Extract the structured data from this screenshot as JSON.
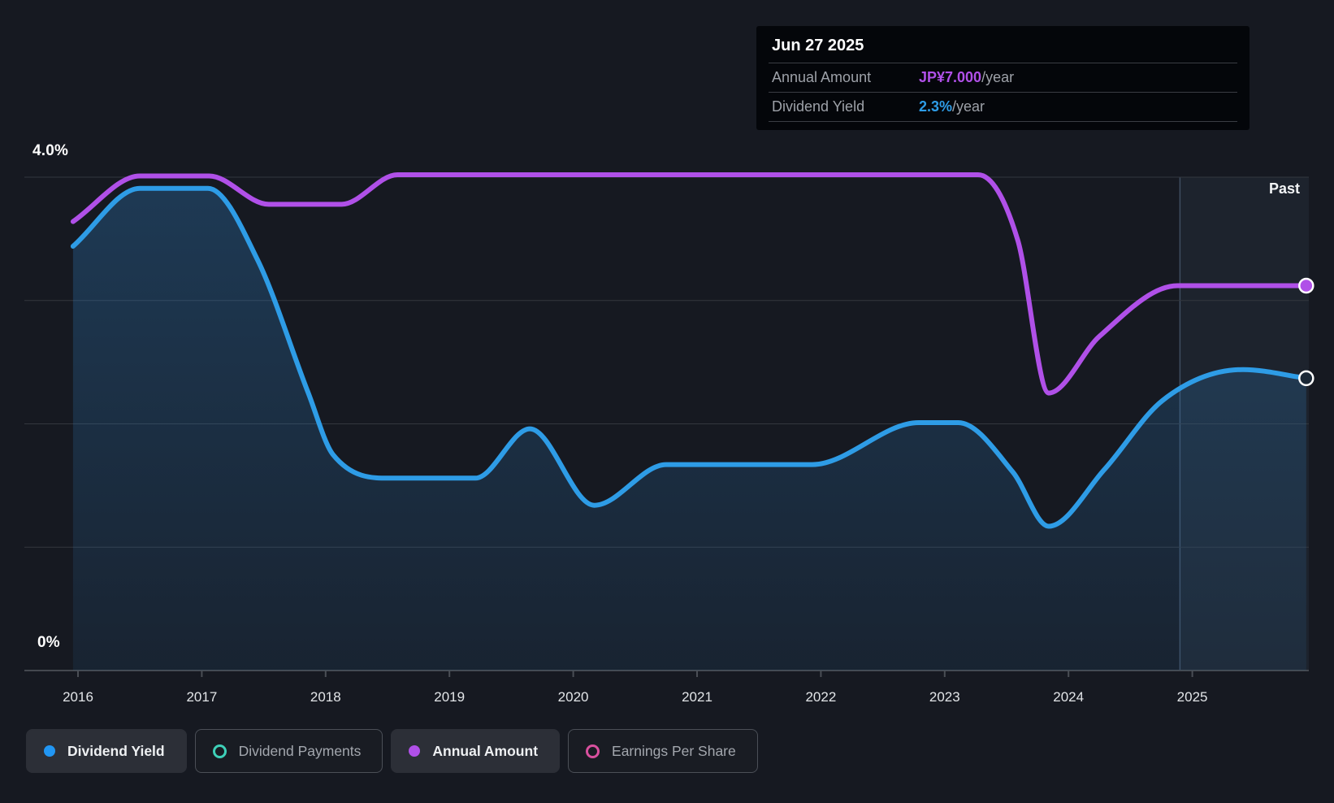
{
  "tooltip": {
    "date": "Jun 27 2025",
    "rows": [
      {
        "label": "Annual Amount",
        "value": "JP¥7.000",
        "suffix": "/year",
        "color": "#b050e8"
      },
      {
        "label": "Dividend Yield",
        "value": "2.3%",
        "suffix": "/year",
        "color": "#2e9ce6"
      }
    ]
  },
  "legend": [
    {
      "label": "Dividend Yield",
      "marker": "filled",
      "color": "#2196f3",
      "selected": true
    },
    {
      "label": "Dividend Payments",
      "marker": "outline",
      "color": "#3ed0b8",
      "selected": false
    },
    {
      "label": "Annual Amount",
      "marker": "filled",
      "color": "#b050e8",
      "selected": true
    },
    {
      "label": "Earnings Per Share",
      "marker": "outline",
      "color": "#d8509e",
      "selected": false
    }
  ],
  "colors": {
    "background": "#161921",
    "dividend_yield": "#2e9ce6",
    "annual_amount": "#b050e8",
    "grid": "#33373e",
    "axis": "#44484f",
    "tick": "#4a4e55",
    "area_top": "rgba(46,126,192,0.32)",
    "area_bottom": "rgba(46,126,192,0.10)",
    "past_fill": "rgba(130,165,215,0.07)",
    "past_line": "rgba(150,185,225,0.30)",
    "marker_hollow_fill": "#1b2836"
  },
  "chart_data": {
    "type": "line",
    "x_axis": {
      "labels": [
        "2016",
        "2017",
        "2018",
        "2019",
        "2020",
        "2021",
        "2022",
        "2023",
        "2024",
        "2025"
      ]
    },
    "y_axis": {
      "top_label": "4.0%",
      "bottom_label": "0%",
      "range_percent": [
        0,
        4
      ],
      "gridlines_percent": [
        4,
        3,
        2,
        1,
        0
      ]
    },
    "past_label": "Past",
    "past_divider_year": 2024.9,
    "series": [
      {
        "name": "Annual Amount",
        "color": "#b050e8",
        "current_value": "JP¥7.000/year",
        "end_marker": "filled",
        "area": false,
        "points": [
          [
            2015.96,
            3.64
          ],
          [
            2016.5,
            4.01
          ],
          [
            2017.06,
            4.01
          ],
          [
            2017.54,
            3.78
          ],
          [
            2018.13,
            3.78
          ],
          [
            2018.58,
            4.02
          ],
          [
            2023.27,
            4.02
          ],
          [
            2023.59,
            3.49
          ],
          [
            2023.84,
            2.25
          ],
          [
            2024.25,
            2.71
          ],
          [
            2024.88,
            3.12
          ],
          [
            2025.92,
            3.12
          ]
        ]
      },
      {
        "name": "Dividend Yield",
        "color": "#2e9ce6",
        "current_value": "2.3%/year",
        "end_marker": "hollow",
        "area": true,
        "points": [
          [
            2015.96,
            3.44
          ],
          [
            2016.5,
            3.91
          ],
          [
            2017.05,
            3.91
          ],
          [
            2017.45,
            3.33
          ],
          [
            2017.86,
            2.25
          ],
          [
            2018.06,
            1.75
          ],
          [
            2018.52,
            1.56
          ],
          [
            2019.21,
            1.56
          ],
          [
            2019.65,
            1.96
          ],
          [
            2020.17,
            1.34
          ],
          [
            2020.75,
            1.67
          ],
          [
            2021.93,
            1.67
          ],
          [
            2022.79,
            2.01
          ],
          [
            2023.11,
            2.01
          ],
          [
            2023.55,
            1.61
          ],
          [
            2023.84,
            1.17
          ],
          [
            2024.29,
            1.63
          ],
          [
            2024.76,
            2.19
          ],
          [
            2025.41,
            2.44
          ],
          [
            2025.92,
            2.37
          ]
        ]
      }
    ]
  }
}
